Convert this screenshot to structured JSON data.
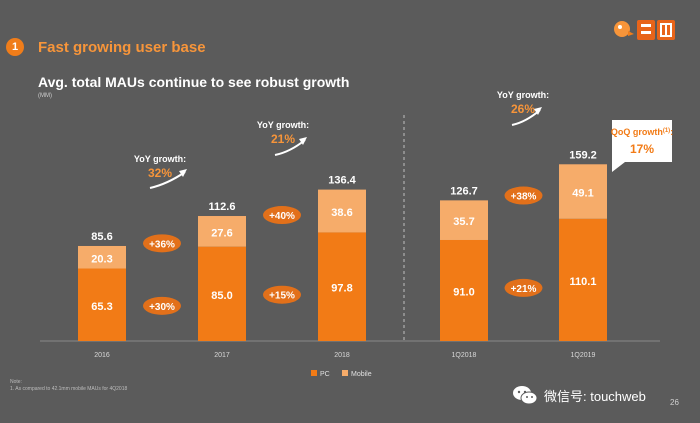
{
  "header": {
    "section_number": "1",
    "section_title": "Fast growing user base"
  },
  "chart_title": "Avg. total MAUs continue to see robust growth",
  "unit_label": "(MM)",
  "footnotes": {
    "note_label": "Note:",
    "note_text": "1. As compared to 42.1mm mobile MAUs for 4Q2018"
  },
  "watermark": {
    "text": "微信号: touchweb"
  },
  "page_number": "26",
  "colors": {
    "pc": "#f27b16",
    "mobile": "#f6ac6a",
    "accent": "#f7953a",
    "oval": "#e2701a",
    "background": "#5b5b5b"
  },
  "chart_data": {
    "type": "bar",
    "stacked": true,
    "categories": [
      "2016",
      "2017",
      "2018",
      "1Q2018",
      "1Q2019"
    ],
    "series": [
      {
        "name": "PC",
        "values": [
          65.3,
          85.0,
          97.8,
          91.0,
          110.1
        ],
        "labels": [
          "65.3",
          "85.0",
          "97.8",
          "91.0",
          "110.1"
        ]
      },
      {
        "name": "Mobile",
        "values": [
          20.3,
          27.6,
          38.6,
          35.7,
          49.1
        ],
        "labels": [
          "20.3",
          "27.6",
          "38.6",
          "35.7",
          "49.1"
        ]
      }
    ],
    "totals": [
      "85.6",
      "112.6",
      "136.4",
      "126.7",
      "159.2"
    ],
    "ylim": [
      0,
      170
    ],
    "legend": [
      "PC",
      "Mobile"
    ],
    "legend_position": "bottom-center",
    "pc_growth": [
      "+30%",
      "+15%",
      "+21%"
    ],
    "mobile_growth": [
      "+36%",
      "+40%",
      "+38%"
    ],
    "yoy": [
      {
        "label": "YoY growth:",
        "value": "32%"
      },
      {
        "label": "YoY growth:",
        "value": "21%"
      },
      {
        "label": "YoY growth:",
        "value": "26%"
      }
    ],
    "qoq": {
      "label": "QoQ growth",
      "superscript": "(1)",
      "colon": ":",
      "value": "17%"
    }
  }
}
